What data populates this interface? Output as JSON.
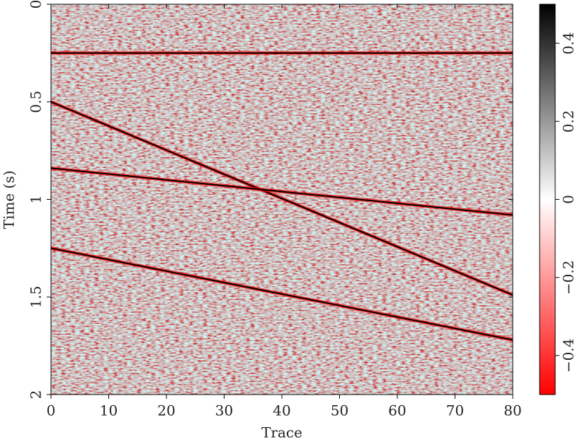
{
  "chart_data": {
    "type": "image",
    "xlabel": "Trace",
    "ylabel": "Time (s)",
    "xlim": [
      0,
      80
    ],
    "xticks": [
      0,
      10,
      20,
      30,
      40,
      50,
      60,
      70,
      80
    ],
    "ylim": [
      2,
      0
    ],
    "yticks": [
      0,
      0.5,
      1,
      1.5,
      2
    ],
    "colormap": [
      "#ff0000",
      "#ffffff",
      "#000000"
    ],
    "clim": [
      -0.5,
      0.5
    ],
    "cticks": [
      {
        "value": -0.4,
        "label": "−0.4"
      },
      {
        "value": -0.2,
        "label": "−0.2"
      },
      0,
      0.2,
      0.4
    ],
    "series": [
      {
        "color": "#000000",
        "x": [
          0,
          80
        ],
        "values": [
          0.25,
          0.25
        ]
      },
      {
        "color": "#000000",
        "x": [
          0,
          80
        ],
        "values": [
          0.5,
          1.49
        ]
      },
      {
        "color": "#000000",
        "x": [
          0,
          80
        ],
        "values": [
          0.84,
          1.08
        ]
      },
      {
        "color": "#000000",
        "x": [
          0,
          80
        ],
        "values": [
          1.25,
          1.72
        ]
      }
    ]
  }
}
